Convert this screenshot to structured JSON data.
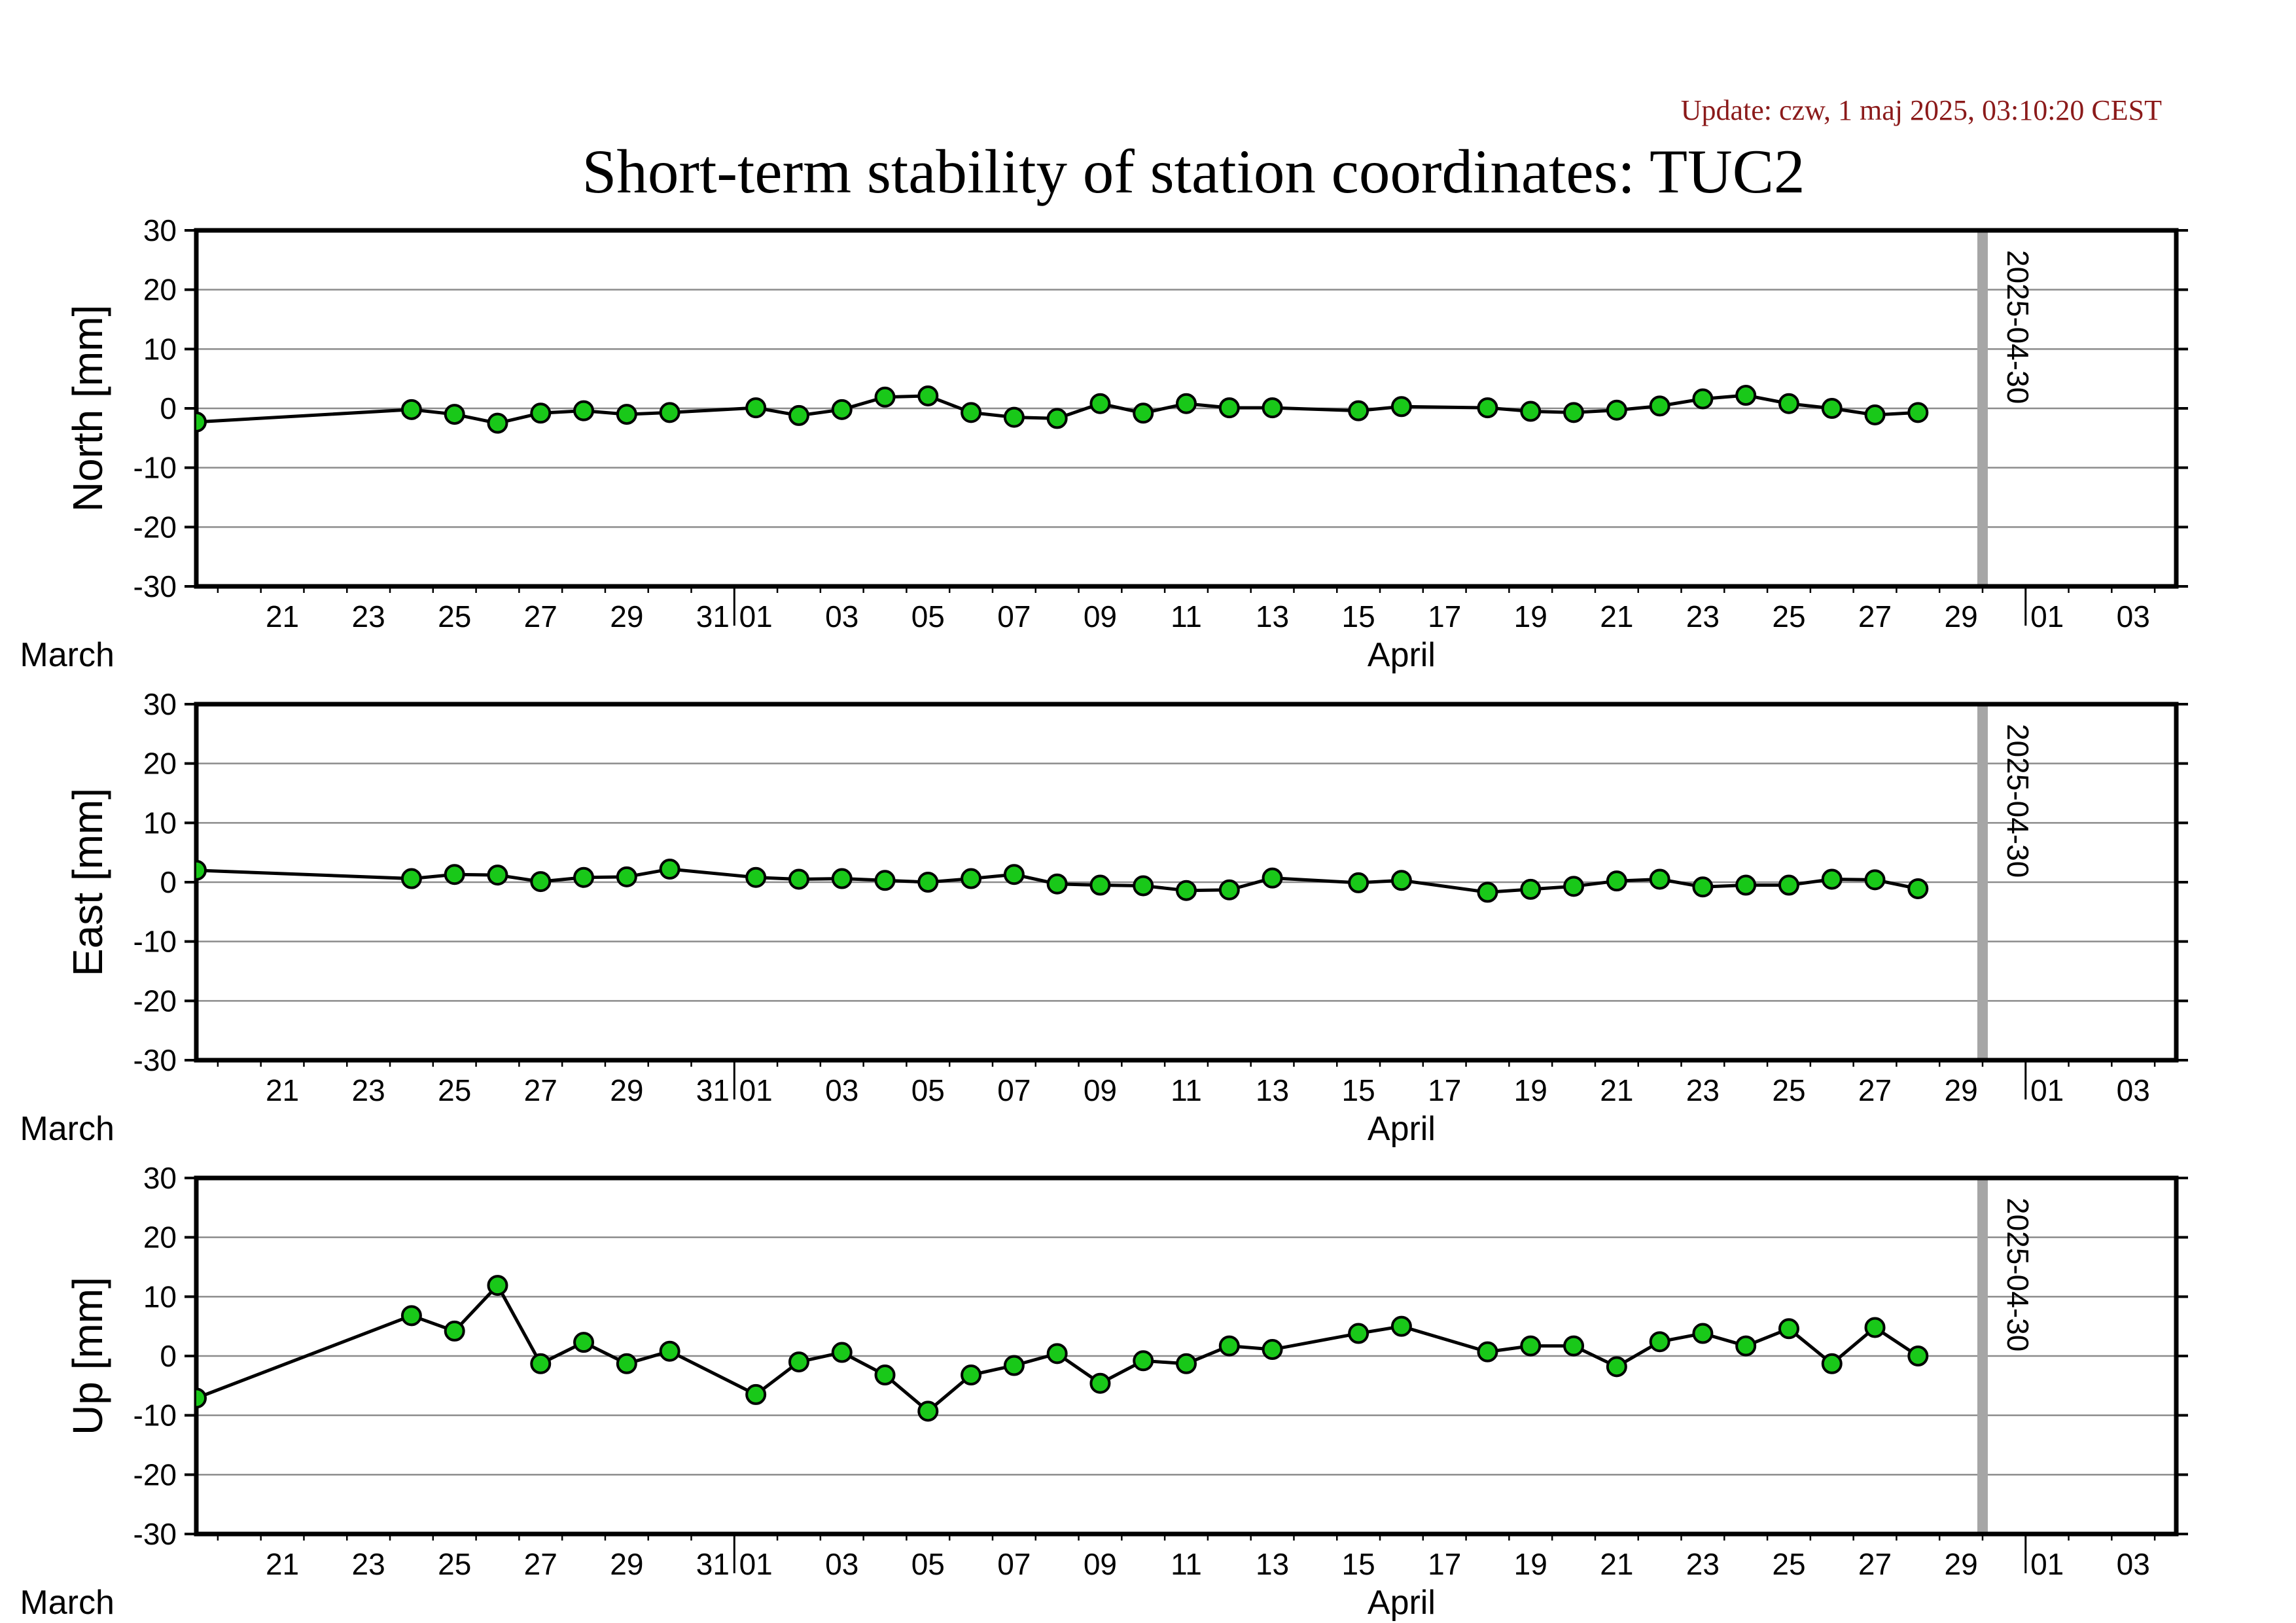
{
  "update_text": "Update: czw, 1 maj 2025, 03:10:20 CEST",
  "title": "Short-term stability of station coordinates: TUC2",
  "colors": {
    "marker_fill": "#19c819",
    "marker_stroke": "#000000",
    "line": "#000000",
    "gridline": "#8c8c8c",
    "marker_bar": "#a6a6a6",
    "update_text": "#8b1a1a"
  },
  "chart_data": [
    {
      "type": "line",
      "ylabel": "North [mm]",
      "ylim": [
        -30,
        30
      ],
      "yticks": [
        -30,
        -20,
        -10,
        0,
        10,
        20,
        30
      ],
      "xlim": [
        "2025-03-19T12:00",
        "2025-05-04T12:00"
      ],
      "xtick_dates": [
        "2025-03-21",
        "2025-03-23",
        "2025-03-25",
        "2025-03-27",
        "2025-03-29",
        "2025-03-31",
        "2025-04-01",
        "2025-04-03",
        "2025-04-05",
        "2025-04-07",
        "2025-04-09",
        "2025-04-11",
        "2025-04-13",
        "2025-04-15",
        "2025-04-17",
        "2025-04-19",
        "2025-04-21",
        "2025-04-23",
        "2025-04-25",
        "2025-04-27",
        "2025-04-29",
        "2025-05-01",
        "2025-05-03"
      ],
      "xtick_labels": [
        "21",
        "23",
        "25",
        "27",
        "29",
        "31",
        "01",
        "03",
        "05",
        "07",
        "09",
        "11",
        "13",
        "15",
        "17",
        "19",
        "21",
        "23",
        "25",
        "27",
        "29",
        "01",
        "03"
      ],
      "month_labels": [
        {
          "text": "March",
          "date": "2025-03-16"
        },
        {
          "text": "April",
          "date": "2025-04-16"
        }
      ],
      "reference_line": {
        "date": "2025-04-30",
        "label": "2025-04-30"
      },
      "grid": true,
      "series": [
        {
          "points": [
            [
              "2025-03-19T12:00",
              -2.3
            ],
            [
              "2025-03-24T12:00",
              -0.2
            ],
            [
              "2025-03-25T12:00",
              -1.0
            ],
            [
              "2025-03-26T12:00",
              -2.5
            ],
            [
              "2025-03-27T12:00",
              -0.8
            ],
            [
              "2025-03-28T12:00",
              -0.4
            ],
            [
              "2025-03-29T12:00",
              -1.0
            ],
            [
              "2025-03-30T12:00",
              -0.7
            ],
            [
              "2025-04-01T12:00",
              0.1
            ],
            [
              "2025-04-02T12:00",
              -1.2
            ],
            [
              "2025-04-03T12:00",
              -0.2
            ],
            [
              "2025-04-04T12:00",
              1.9
            ],
            [
              "2025-04-05T12:00",
              2.1
            ],
            [
              "2025-04-06T12:00",
              -0.7
            ],
            [
              "2025-04-07T12:00",
              -1.5
            ],
            [
              "2025-04-08T12:00",
              -1.7
            ],
            [
              "2025-04-09T12:00",
              0.8
            ],
            [
              "2025-04-10T12:00",
              -0.8
            ],
            [
              "2025-04-11T12:00",
              0.8
            ],
            [
              "2025-04-12T12:00",
              0.1
            ],
            [
              "2025-04-13T12:00",
              0.1
            ],
            [
              "2025-04-15T12:00",
              -0.4
            ],
            [
              "2025-04-16T12:00",
              0.3
            ],
            [
              "2025-04-18T12:00",
              0.1
            ],
            [
              "2025-04-19T12:00",
              -0.5
            ],
            [
              "2025-04-20T12:00",
              -0.7
            ],
            [
              "2025-04-21T12:00",
              -0.3
            ],
            [
              "2025-04-22T12:00",
              0.4
            ],
            [
              "2025-04-23T12:00",
              1.6
            ],
            [
              "2025-04-24T12:00",
              2.2
            ],
            [
              "2025-04-25T12:00",
              0.8
            ],
            [
              "2025-04-26T12:00",
              0.0
            ],
            [
              "2025-04-27T12:00",
              -1.1
            ],
            [
              "2025-04-28T12:00",
              -0.7
            ]
          ]
        }
      ]
    },
    {
      "type": "line",
      "ylabel": "East [mm]",
      "ylim": [
        -30,
        30
      ],
      "yticks": [
        -30,
        -20,
        -10,
        0,
        10,
        20,
        30
      ],
      "xlim": [
        "2025-03-19T12:00",
        "2025-05-04T12:00"
      ],
      "xtick_dates": [
        "2025-03-21",
        "2025-03-23",
        "2025-03-25",
        "2025-03-27",
        "2025-03-29",
        "2025-03-31",
        "2025-04-01",
        "2025-04-03",
        "2025-04-05",
        "2025-04-07",
        "2025-04-09",
        "2025-04-11",
        "2025-04-13",
        "2025-04-15",
        "2025-04-17",
        "2025-04-19",
        "2025-04-21",
        "2025-04-23",
        "2025-04-25",
        "2025-04-27",
        "2025-04-29",
        "2025-05-01",
        "2025-05-03"
      ],
      "xtick_labels": [
        "21",
        "23",
        "25",
        "27",
        "29",
        "31",
        "01",
        "03",
        "05",
        "07",
        "09",
        "11",
        "13",
        "15",
        "17",
        "19",
        "21",
        "23",
        "25",
        "27",
        "29",
        "01",
        "03"
      ],
      "month_labels": [
        {
          "text": "March",
          "date": "2025-03-16"
        },
        {
          "text": "April",
          "date": "2025-04-16"
        }
      ],
      "reference_line": {
        "date": "2025-04-30",
        "label": "2025-04-30"
      },
      "grid": true,
      "series": [
        {
          "points": [
            [
              "2025-03-19T12:00",
              2.0
            ],
            [
              "2025-03-24T12:00",
              0.6
            ],
            [
              "2025-03-25T12:00",
              1.3
            ],
            [
              "2025-03-26T12:00",
              1.2
            ],
            [
              "2025-03-27T12:00",
              0.1
            ],
            [
              "2025-03-28T12:00",
              0.8
            ],
            [
              "2025-03-29T12:00",
              0.9
            ],
            [
              "2025-03-30T12:00",
              2.2
            ],
            [
              "2025-04-01T12:00",
              0.8
            ],
            [
              "2025-04-02T12:00",
              0.5
            ],
            [
              "2025-04-03T12:00",
              0.6
            ],
            [
              "2025-04-04T12:00",
              0.3
            ],
            [
              "2025-04-05T12:00",
              0.0
            ],
            [
              "2025-04-06T12:00",
              0.6
            ],
            [
              "2025-04-07T12:00",
              1.3
            ],
            [
              "2025-04-08T12:00",
              -0.3
            ],
            [
              "2025-04-09T12:00",
              -0.5
            ],
            [
              "2025-04-10T12:00",
              -0.6
            ],
            [
              "2025-04-11T12:00",
              -1.4
            ],
            [
              "2025-04-12T12:00",
              -1.3
            ],
            [
              "2025-04-13T12:00",
              0.7
            ],
            [
              "2025-04-15T12:00",
              -0.1
            ],
            [
              "2025-04-16T12:00",
              0.3
            ],
            [
              "2025-04-18T12:00",
              -1.7
            ],
            [
              "2025-04-19T12:00",
              -1.2
            ],
            [
              "2025-04-20T12:00",
              -0.7
            ],
            [
              "2025-04-21T12:00",
              0.2
            ],
            [
              "2025-04-22T12:00",
              0.5
            ],
            [
              "2025-04-23T12:00",
              -0.8
            ],
            [
              "2025-04-24T12:00",
              -0.5
            ],
            [
              "2025-04-25T12:00",
              -0.5
            ],
            [
              "2025-04-26T12:00",
              0.5
            ],
            [
              "2025-04-27T12:00",
              0.4
            ],
            [
              "2025-04-28T12:00",
              -1.1
            ]
          ]
        }
      ]
    },
    {
      "type": "line",
      "ylabel": "Up [mm]",
      "ylim": [
        -30,
        30
      ],
      "yticks": [
        -30,
        -20,
        -10,
        0,
        10,
        20,
        30
      ],
      "xlim": [
        "2025-03-19T12:00",
        "2025-05-04T12:00"
      ],
      "xtick_dates": [
        "2025-03-21",
        "2025-03-23",
        "2025-03-25",
        "2025-03-27",
        "2025-03-29",
        "2025-03-31",
        "2025-04-01",
        "2025-04-03",
        "2025-04-05",
        "2025-04-07",
        "2025-04-09",
        "2025-04-11",
        "2025-04-13",
        "2025-04-15",
        "2025-04-17",
        "2025-04-19",
        "2025-04-21",
        "2025-04-23",
        "2025-04-25",
        "2025-04-27",
        "2025-04-29",
        "2025-05-01",
        "2025-05-03"
      ],
      "xtick_labels": [
        "21",
        "23",
        "25",
        "27",
        "29",
        "31",
        "01",
        "03",
        "05",
        "07",
        "09",
        "11",
        "13",
        "15",
        "17",
        "19",
        "21",
        "23",
        "25",
        "27",
        "29",
        "01",
        "03"
      ],
      "month_labels": [
        {
          "text": "March",
          "date": "2025-03-16"
        },
        {
          "text": "April",
          "date": "2025-04-16"
        }
      ],
      "reference_line": {
        "date": "2025-04-30",
        "label": "2025-04-30"
      },
      "grid": true,
      "series": [
        {
          "points": [
            [
              "2025-03-19T12:00",
              -7.1
            ],
            [
              "2025-03-24T12:00",
              6.8
            ],
            [
              "2025-03-25T12:00",
              4.2
            ],
            [
              "2025-03-26T12:00",
              11.9
            ],
            [
              "2025-03-27T12:00",
              -1.3
            ],
            [
              "2025-03-28T12:00",
              2.3
            ],
            [
              "2025-03-29T12:00",
              -1.3
            ],
            [
              "2025-03-30T12:00",
              0.8
            ],
            [
              "2025-04-01T12:00",
              -6.5
            ],
            [
              "2025-04-02T12:00",
              -1.0
            ],
            [
              "2025-04-03T12:00",
              0.6
            ],
            [
              "2025-04-04T12:00",
              -3.2
            ],
            [
              "2025-04-05T12:00",
              -9.3
            ],
            [
              "2025-04-06T12:00",
              -3.2
            ],
            [
              "2025-04-07T12:00",
              -1.6
            ],
            [
              "2025-04-08T12:00",
              0.4
            ],
            [
              "2025-04-09T12:00",
              -4.6
            ],
            [
              "2025-04-10T12:00",
              -0.8
            ],
            [
              "2025-04-11T12:00",
              -1.3
            ],
            [
              "2025-04-12T12:00",
              1.7
            ],
            [
              "2025-04-13T12:00",
              1.1
            ],
            [
              "2025-04-15T12:00",
              3.8
            ],
            [
              "2025-04-16T12:00",
              5.0
            ],
            [
              "2025-04-18T12:00",
              0.7
            ],
            [
              "2025-04-19T12:00",
              1.7
            ],
            [
              "2025-04-20T12:00",
              1.7
            ],
            [
              "2025-04-21T12:00",
              -1.8
            ],
            [
              "2025-04-22T12:00",
              2.4
            ],
            [
              "2025-04-23T12:00",
              3.8
            ],
            [
              "2025-04-24T12:00",
              1.7
            ],
            [
              "2025-04-25T12:00",
              4.6
            ],
            [
              "2025-04-26T12:00",
              -1.3
            ],
            [
              "2025-04-27T12:00",
              4.8
            ],
            [
              "2025-04-28T12:00",
              0.0
            ]
          ]
        }
      ]
    }
  ]
}
